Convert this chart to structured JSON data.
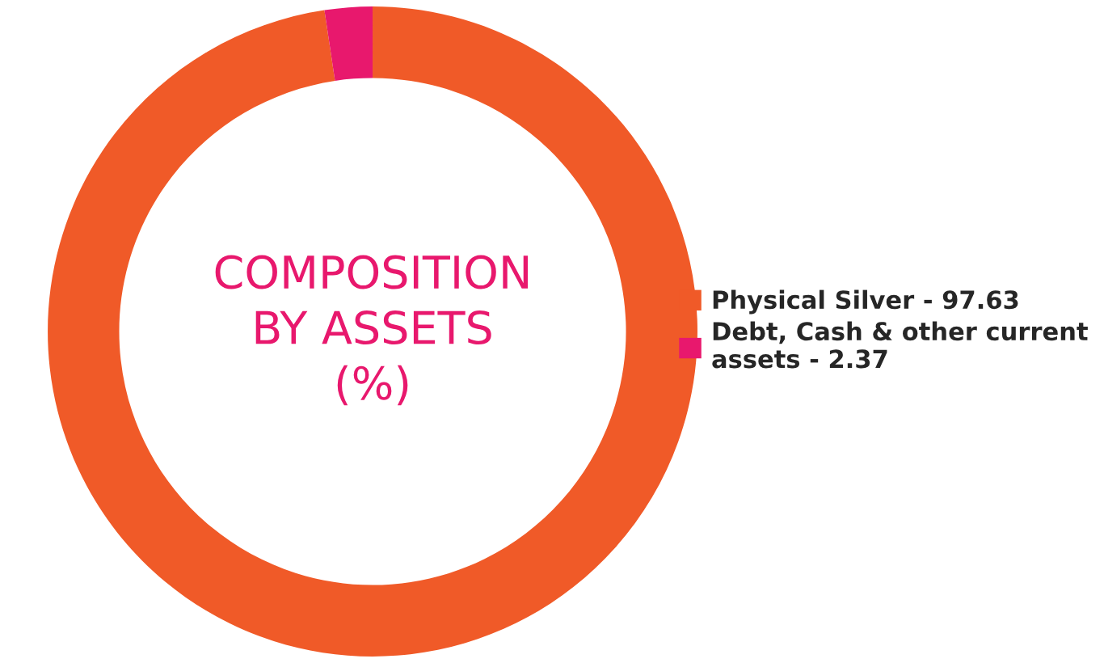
{
  "chart_data": {
    "type": "donut",
    "title": "COMPOSITION\nBY ASSETS\n(%)",
    "categories": [
      "Physical Silver - 97.63",
      "Debt, Cash & other current\nassets - 2.37"
    ],
    "values": [
      97.63,
      2.37
    ],
    "colors": [
      "#f05a28",
      "#e8186d"
    ],
    "legend": "right"
  }
}
